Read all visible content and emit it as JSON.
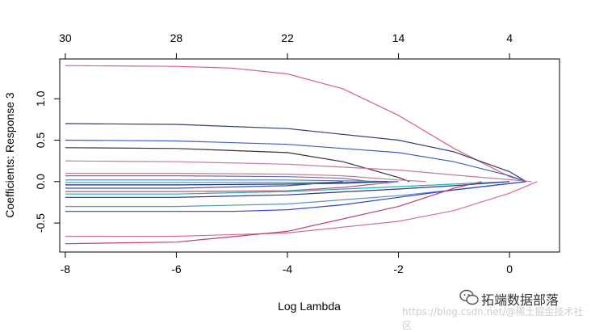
{
  "chart_data": {
    "type": "line",
    "xlabel": "Log Lambda",
    "ylabel": "Coefficients: Response 3",
    "xlim": [
      -8.1,
      0.9
    ],
    "ylim": [
      -0.85,
      1.48
    ],
    "x_ticks": [
      -8,
      -6,
      -4,
      -2,
      0
    ],
    "y_ticks": [
      -0.5,
      0.0,
      0.5,
      1.0
    ],
    "y_tick_labels": [
      "-0.5",
      "0.0",
      "0.5",
      "1.0"
    ],
    "top_axis": {
      "ticks": [
        -8,
        -6,
        -4,
        -2,
        0
      ],
      "labels": [
        "30",
        "28",
        "22",
        "14",
        "4"
      ]
    },
    "grid": false,
    "series": [
      {
        "name": "path-1",
        "color": "#d9607a",
        "x": [
          -8,
          -6,
          -5,
          -4,
          -3,
          -2,
          -1,
          0,
          0.3
        ],
        "y": [
          1.4,
          1.39,
          1.37,
          1.3,
          1.12,
          0.8,
          0.4,
          0.06,
          0.0
        ]
      },
      {
        "name": "path-2",
        "color": "#2e3f6e",
        "x": [
          -8,
          -6,
          -4,
          -2,
          -1,
          0,
          0.3
        ],
        "y": [
          0.7,
          0.69,
          0.64,
          0.5,
          0.36,
          0.12,
          0.0
        ]
      },
      {
        "name": "path-3",
        "color": "#4060c0",
        "x": [
          -8,
          -6,
          -4,
          -2,
          -1,
          0,
          0.3
        ],
        "y": [
          0.5,
          0.49,
          0.45,
          0.35,
          0.24,
          0.07,
          0.0
        ]
      },
      {
        "name": "path-4",
        "color": "#333333",
        "x": [
          -8,
          -6,
          -4,
          -3,
          -2,
          -1.8
        ],
        "y": [
          0.41,
          0.4,
          0.35,
          0.24,
          0.05,
          0.0
        ]
      },
      {
        "name": "path-5",
        "color": "#c878a0",
        "x": [
          -8,
          -6,
          -4,
          -2,
          -1,
          0.4
        ],
        "y": [
          0.25,
          0.24,
          0.21,
          0.14,
          0.08,
          0.0
        ]
      },
      {
        "name": "path-6",
        "color": "#d07890",
        "x": [
          -8,
          -6,
          -4,
          -3,
          -2,
          -1.5
        ],
        "y": [
          0.1,
          0.1,
          0.09,
          0.07,
          0.02,
          0.0
        ]
      },
      {
        "name": "path-7",
        "color": "#6070b0",
        "x": [
          -8,
          -6,
          -4,
          -3,
          -2.5
        ],
        "y": [
          0.07,
          0.07,
          0.06,
          0.04,
          0.0
        ]
      },
      {
        "name": "path-8",
        "color": "#5080c0",
        "x": [
          -8,
          -6,
          -4,
          -3,
          -2
        ],
        "y": [
          0.02,
          0.02,
          0.02,
          0.01,
          0.0
        ]
      },
      {
        "name": "path-9",
        "color": "#20a0c0",
        "x": [
          -8,
          -6,
          -4,
          -3,
          -2
        ],
        "y": [
          -0.01,
          -0.01,
          -0.01,
          -0.01,
          0.0
        ]
      },
      {
        "name": "path-10",
        "color": "#1a2a7a",
        "x": [
          -8,
          -6,
          -4,
          -3,
          -2.2
        ],
        "y": [
          -0.04,
          -0.04,
          -0.03,
          -0.02,
          0.0
        ]
      },
      {
        "name": "path-11",
        "color": "#3a4a9a",
        "x": [
          -8,
          -6,
          -4,
          -3
        ],
        "y": [
          -0.08,
          -0.08,
          -0.05,
          0.0
        ]
      },
      {
        "name": "path-12",
        "color": "#c05070",
        "x": [
          -8,
          -6,
          -4,
          -3,
          -2
        ],
        "y": [
          -0.12,
          -0.12,
          -0.11,
          -0.07,
          0.0
        ]
      },
      {
        "name": "path-13",
        "color": "#20b0b0",
        "x": [
          -8,
          -6,
          -4,
          -2,
          -1,
          0
        ],
        "y": [
          -0.15,
          -0.15,
          -0.12,
          -0.06,
          -0.03,
          0.0
        ]
      },
      {
        "name": "path-14",
        "color": "#2a3a80",
        "x": [
          -8,
          -6,
          -4,
          -2,
          -1,
          0
        ],
        "y": [
          -0.19,
          -0.19,
          -0.16,
          -0.09,
          -0.05,
          0.0
        ]
      },
      {
        "name": "path-15",
        "color": "#5a90c8",
        "x": [
          -8,
          -6,
          -4,
          -2,
          -1,
          0.3
        ],
        "y": [
          -0.3,
          -0.3,
          -0.27,
          -0.17,
          -0.1,
          0.0
        ]
      },
      {
        "name": "path-16",
        "color": "#3040d0",
        "x": [
          -8,
          -6,
          -5,
          -4,
          -3,
          -2,
          -1,
          0.3
        ],
        "y": [
          -0.36,
          -0.36,
          -0.36,
          -0.34,
          -0.28,
          -0.19,
          -0.1,
          0.0
        ]
      },
      {
        "name": "path-17",
        "color": "#d07090",
        "x": [
          -8,
          -6,
          -4,
          -2,
          -1,
          0,
          0.5
        ],
        "y": [
          -0.66,
          -0.66,
          -0.62,
          -0.48,
          -0.35,
          -0.14,
          0.0
        ]
      },
      {
        "name": "path-18",
        "color": "#c04060",
        "x": [
          -8,
          -6,
          -4,
          -2,
          -1,
          -0.5
        ],
        "y": [
          -0.75,
          -0.73,
          -0.6,
          -0.3,
          -0.08,
          0.0
        ]
      }
    ]
  },
  "watermark": {
    "brand": "拓端数据部落",
    "url": "https://blog.csdn.net/@稀土掘金技术社区"
  }
}
